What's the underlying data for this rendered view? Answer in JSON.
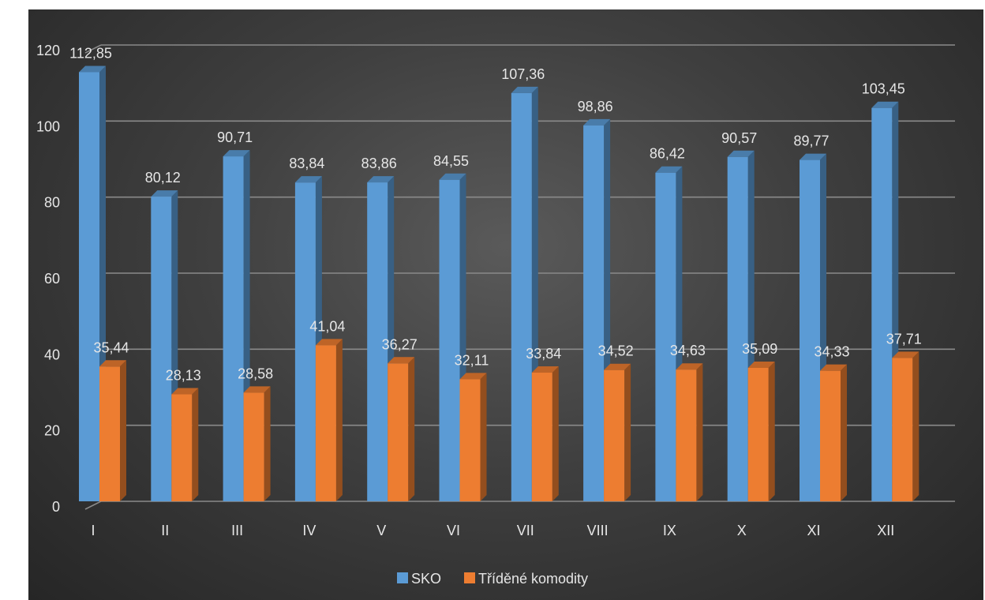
{
  "chart_data": {
    "type": "bar",
    "categories": [
      "I",
      "II",
      "III",
      "IV",
      "V",
      "VI",
      "VII",
      "VIII",
      "IX",
      "X",
      "XI",
      "XII"
    ],
    "series": [
      {
        "name": "SKO",
        "values": [
          112.85,
          80.12,
          90.71,
          83.84,
          83.86,
          84.55,
          107.36,
          98.86,
          86.42,
          90.57,
          89.77,
          103.45
        ],
        "labels": [
          "112,85",
          "80,12",
          "90,71",
          "83,84",
          "83,86",
          "84,55",
          "107,36",
          "98,86",
          "86,42",
          "90,57",
          "89,77",
          "103,45"
        ],
        "color": "#5b9bd5"
      },
      {
        "name": "Tříděné komodity",
        "values": [
          35.44,
          28.13,
          28.58,
          41.04,
          36.27,
          32.11,
          33.84,
          34.52,
          34.63,
          35.09,
          34.33,
          37.71
        ],
        "labels": [
          "35,44",
          "28,13",
          "28,58",
          "41,04",
          "36,27",
          "32,11",
          "33,84",
          "34,52",
          "34,63",
          "35,09",
          "34,33",
          "37,71"
        ],
        "color": "#ed7d31"
      }
    ],
    "yticks": [
      "0",
      "20",
      "40",
      "60",
      "80",
      "100",
      "120"
    ],
    "ylim": [
      0,
      120
    ],
    "grid": true,
    "legend_position": "bottom",
    "style": "3d-column"
  }
}
